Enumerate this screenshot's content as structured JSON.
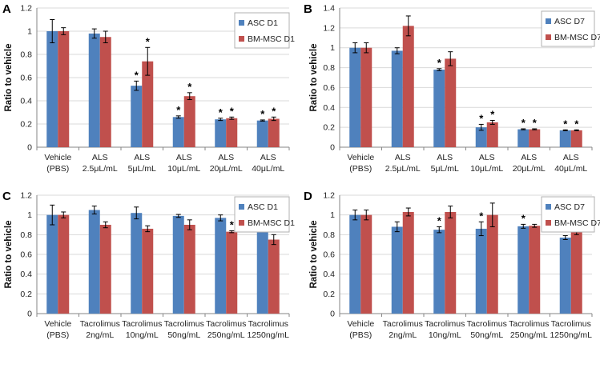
{
  "colors": {
    "asc": "#4f81bd",
    "bm": "#c0504d",
    "grid": "#d9d9d9",
    "axis": "#868686"
  },
  "chart_data": [
    {
      "panel_label": "A",
      "type": "bar",
      "ylabel": "Ratio to vehicle",
      "ylim": [
        0,
        1.2
      ],
      "yticks": [
        "0",
        "0.2",
        "0.4",
        "0.6",
        "0.8",
        "1",
        "1.2"
      ],
      "categories": [
        [
          "Vehicle",
          "(PBS)"
        ],
        [
          "ALS",
          "2.5μL/mL"
        ],
        [
          "ALS",
          "5μL/mL"
        ],
        [
          "ALS",
          "10μL/mL"
        ],
        [
          "ALS",
          "20μL/mL"
        ],
        [
          "ALS",
          "40μL/mL"
        ]
      ],
      "legend_position": "top-right",
      "series": [
        {
          "name": "ASC D1",
          "values": [
            1.0,
            0.98,
            0.53,
            0.26,
            0.24,
            0.23
          ],
          "errors": [
            0.1,
            0.04,
            0.04,
            0.01,
            0.01,
            0.005
          ],
          "significant": [
            false,
            false,
            true,
            true,
            true,
            true
          ]
        },
        {
          "name": "BM-MSC D1",
          "values": [
            1.0,
            0.95,
            0.74,
            0.44,
            0.25,
            0.245
          ],
          "errors": [
            0.03,
            0.05,
            0.12,
            0.03,
            0.01,
            0.015
          ],
          "significant": [
            false,
            false,
            true,
            true,
            true,
            true
          ]
        }
      ]
    },
    {
      "panel_label": "B",
      "type": "bar",
      "ylabel": "Ratio to vehicle",
      "ylim": [
        0,
        1.4
      ],
      "yticks": [
        "0",
        "0.2",
        "0.4",
        "0.6",
        "0.8",
        "1",
        "1.2",
        "1.4"
      ],
      "categories": [
        [
          "Vehicle",
          "(PBS)"
        ],
        [
          "ALS",
          "2.5μL/mL"
        ],
        [
          "ALS",
          "5μL/mL"
        ],
        [
          "ALS",
          "10μL/mL"
        ],
        [
          "ALS",
          "20μL/mL"
        ],
        [
          "ALS",
          "40μL/mL"
        ]
      ],
      "legend_position": "top-right",
      "series": [
        {
          "name": "ASC D7",
          "values": [
            1.0,
            0.97,
            0.78,
            0.2,
            0.18,
            0.17
          ],
          "errors": [
            0.05,
            0.03,
            0.01,
            0.03,
            0.005,
            0.005
          ],
          "significant": [
            false,
            false,
            true,
            true,
            true,
            true
          ]
        },
        {
          "name": "BM-MSC D7",
          "values": [
            1.0,
            1.22,
            0.89,
            0.25,
            0.18,
            0.17
          ],
          "errors": [
            0.05,
            0.1,
            0.07,
            0.02,
            0.005,
            0.005
          ],
          "significant": [
            false,
            false,
            false,
            true,
            true,
            true
          ]
        }
      ]
    },
    {
      "panel_label": "C",
      "type": "bar",
      "ylabel": "Ratio to vehicle",
      "ylim": [
        0,
        1.2
      ],
      "yticks": [
        "0",
        "0.2",
        "0.4",
        "0.6",
        "0.8",
        "1",
        "1.2"
      ],
      "categories": [
        [
          "Vehicle",
          "(PBS)"
        ],
        [
          "Tacrolimus",
          "2ng/mL"
        ],
        [
          "Tacrolimus",
          "10ng/mL"
        ],
        [
          "Tacrolimus",
          "50ng/mL"
        ],
        [
          "Tacrolimus",
          "250ng/mL"
        ],
        [
          "Tacrolimus",
          "1250ng/mL"
        ]
      ],
      "legend_position": "top-right",
      "series": [
        {
          "name": "ASC D1",
          "values": [
            1.0,
            1.05,
            1.02,
            0.99,
            0.97,
            0.92
          ],
          "errors": [
            0.1,
            0.04,
            0.06,
            0.015,
            0.03,
            0.03
          ],
          "significant": [
            false,
            false,
            false,
            false,
            false,
            false
          ]
        },
        {
          "name": "BM-MSC D1",
          "values": [
            1.0,
            0.9,
            0.86,
            0.9,
            0.83,
            0.75
          ],
          "errors": [
            0.03,
            0.03,
            0.03,
            0.05,
            0.01,
            0.05
          ],
          "significant": [
            false,
            false,
            false,
            false,
            true,
            true
          ]
        }
      ]
    },
    {
      "panel_label": "D",
      "type": "bar",
      "ylabel": "Ratio to vehicle",
      "ylim": [
        0,
        1.2
      ],
      "yticks": [
        "0",
        "0.2",
        "0.4",
        "0.6",
        "0.8",
        "1",
        "1.2"
      ],
      "categories": [
        [
          "Vehicle",
          "(PBS)"
        ],
        [
          "Tacrolimus",
          "2ng/mL"
        ],
        [
          "Tacrolimus",
          "10ng/mL"
        ],
        [
          "Tacrolimus",
          "50ng/mL"
        ],
        [
          "Tacrolimus",
          "250ng/mL"
        ],
        [
          "Tacrolimus",
          "1250ng/mL"
        ]
      ],
      "legend_position": "top-right",
      "series": [
        {
          "name": "ASC D7",
          "values": [
            1.0,
            0.88,
            0.85,
            0.86,
            0.885,
            0.77
          ],
          "errors": [
            0.05,
            0.05,
            0.03,
            0.07,
            0.02,
            0.02
          ],
          "significant": [
            false,
            false,
            true,
            true,
            true,
            true
          ]
        },
        {
          "name": "BM-MSC D7",
          "values": [
            1.0,
            1.03,
            1.03,
            1.0,
            0.89,
            0.83
          ],
          "errors": [
            0.05,
            0.04,
            0.06,
            0.12,
            0.015,
            0.03
          ],
          "significant": [
            false,
            false,
            false,
            false,
            false,
            true
          ]
        }
      ]
    }
  ]
}
